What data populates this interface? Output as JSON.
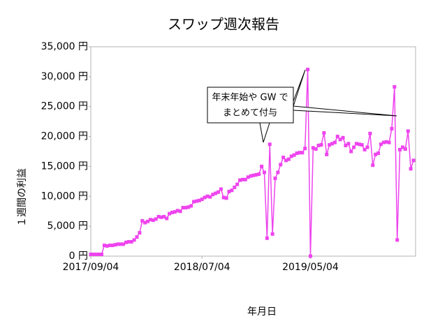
{
  "chart_data": {
    "type": "line",
    "title": "スワップ週次報告",
    "x_label": "年月日",
    "y_label": "１週間の利益",
    "annotation": [
      "年末年始や GW で",
      "まとめて付与"
    ],
    "categories": [
      "2017/09/04",
      null,
      null,
      null,
      null,
      null,
      null,
      null,
      null,
      null,
      null,
      null,
      null,
      null,
      null,
      null,
      null,
      null,
      null,
      null,
      null,
      null,
      null,
      null,
      null,
      null,
      null,
      null,
      null,
      null,
      null,
      null,
      null,
      null,
      null,
      null,
      null,
      null,
      null,
      null,
      null,
      "2018/07/04",
      null,
      null,
      null,
      null,
      null,
      null,
      null,
      null,
      null,
      null,
      null,
      null,
      null,
      null,
      null,
      null,
      null,
      null,
      null,
      null,
      null,
      null,
      null,
      null,
      null,
      null,
      null,
      null,
      null,
      null,
      null,
      null,
      null,
      null,
      null,
      null,
      null,
      null,
      null,
      "2019/05/04",
      null,
      null,
      null,
      null,
      null,
      null,
      null,
      null,
      null,
      null,
      null,
      null,
      null,
      null,
      null,
      null,
      null,
      null,
      null,
      null,
      null,
      null,
      null,
      null,
      null,
      null,
      null,
      null,
      null,
      null,
      null,
      null,
      null,
      null,
      null,
      null,
      null,
      null
    ],
    "series": [
      {
        "name": "1週間の利益",
        "color": "#ee44ee",
        "values": [
          300,
          300,
          300,
          300,
          300,
          1800,
          1700,
          1800,
          1800,
          1900,
          2000,
          2000,
          2000,
          2300,
          2400,
          2400,
          2700,
          3200,
          3900,
          5900,
          5600,
          5800,
          6100,
          6000,
          6200,
          6600,
          6500,
          6600,
          6300,
          7100,
          7300,
          7400,
          7600,
          7500,
          8100,
          8100,
          8200,
          8400,
          9100,
          9200,
          9300,
          9500,
          9800,
          10000,
          9900,
          10300,
          10500,
          10700,
          11200,
          9800,
          9700,
          10800,
          11000,
          11500,
          12000,
          12700,
          12800,
          12800,
          13200,
          13400,
          13500,
          13600,
          13700,
          15000,
          14000,
          3000,
          18700,
          3700,
          13000,
          14000,
          15300,
          16500,
          16000,
          16200,
          16700,
          16900,
          17200,
          17300,
          17300,
          18000,
          31200,
          0,
          18100,
          17900,
          18500,
          18600,
          20600,
          17000,
          18600,
          18800,
          19000,
          20000,
          19500,
          19800,
          18500,
          18800,
          17500,
          18200,
          18800,
          18700,
          18600,
          17800,
          18200,
          20500,
          15200,
          17000,
          17200,
          18700,
          19000,
          19100,
          19000,
          21300,
          28300,
          2700,
          17800,
          18200,
          17900,
          20900,
          14600,
          16000
        ]
      }
    ],
    "ylim": [
      0,
      35000
    ],
    "yticks": [
      {
        "value": 0,
        "label": "0 円"
      },
      {
        "value": 5000,
        "label": "5,000 円"
      },
      {
        "value": 10000,
        "label": "10,000 円"
      },
      {
        "value": 15000,
        "label": "15,000 円"
      },
      {
        "value": 20000,
        "label": "20,000 円"
      },
      {
        "value": 25000,
        "label": "25,000 円"
      },
      {
        "value": 30000,
        "label": "30,000 円"
      },
      {
        "value": 35000,
        "label": "35,000 円"
      }
    ],
    "grid": false
  }
}
